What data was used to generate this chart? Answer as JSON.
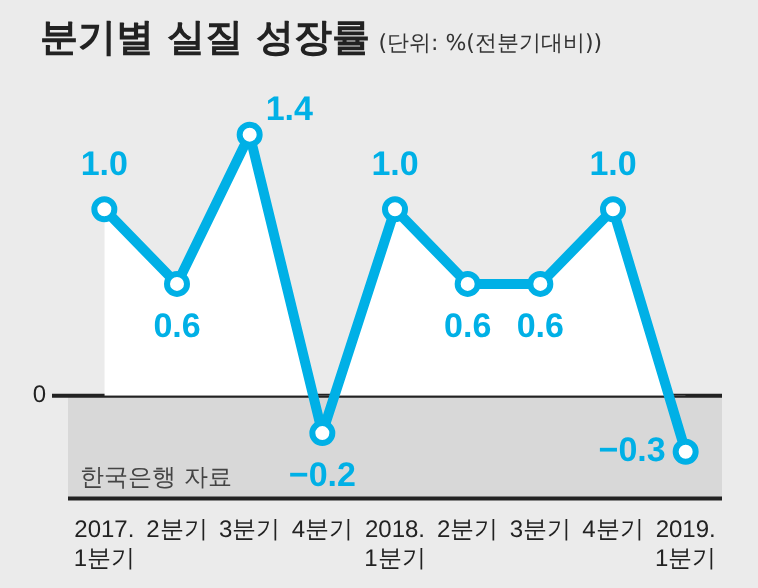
{
  "chart_data": {
    "type": "line",
    "title": "분기별 실질 성장률",
    "subtitle": "(단위: %(전분기대비))",
    "categories": [
      "2017.\n1분기",
      "2분기",
      "3분기",
      "4분기",
      "2018.\n1분기",
      "2분기",
      "3분기",
      "4분기",
      "2019.\n1분기"
    ],
    "series": [
      {
        "color": "#00b0e6",
        "values": [
          1.0,
          0.6,
          1.4,
          -0.2,
          1.0,
          0.6,
          0.6,
          1.0,
          -0.3
        ],
        "value_labels": [
          "1.0",
          "0.6",
          "1.4",
          "−0.2",
          "1.0",
          "0.6",
          "0.6",
          "1.0",
          "−0.3"
        ]
      }
    ],
    "ref_lines": [
      {
        "axis": "y",
        "value": 0,
        "label": "0"
      }
    ],
    "bands": [
      {
        "axis": "y",
        "from": -0.55,
        "to": 0,
        "color": "#d8d8d8"
      }
    ],
    "marker": "circle",
    "grid": false,
    "legend": false,
    "annotations": [
      "한국은행 자료"
    ]
  }
}
